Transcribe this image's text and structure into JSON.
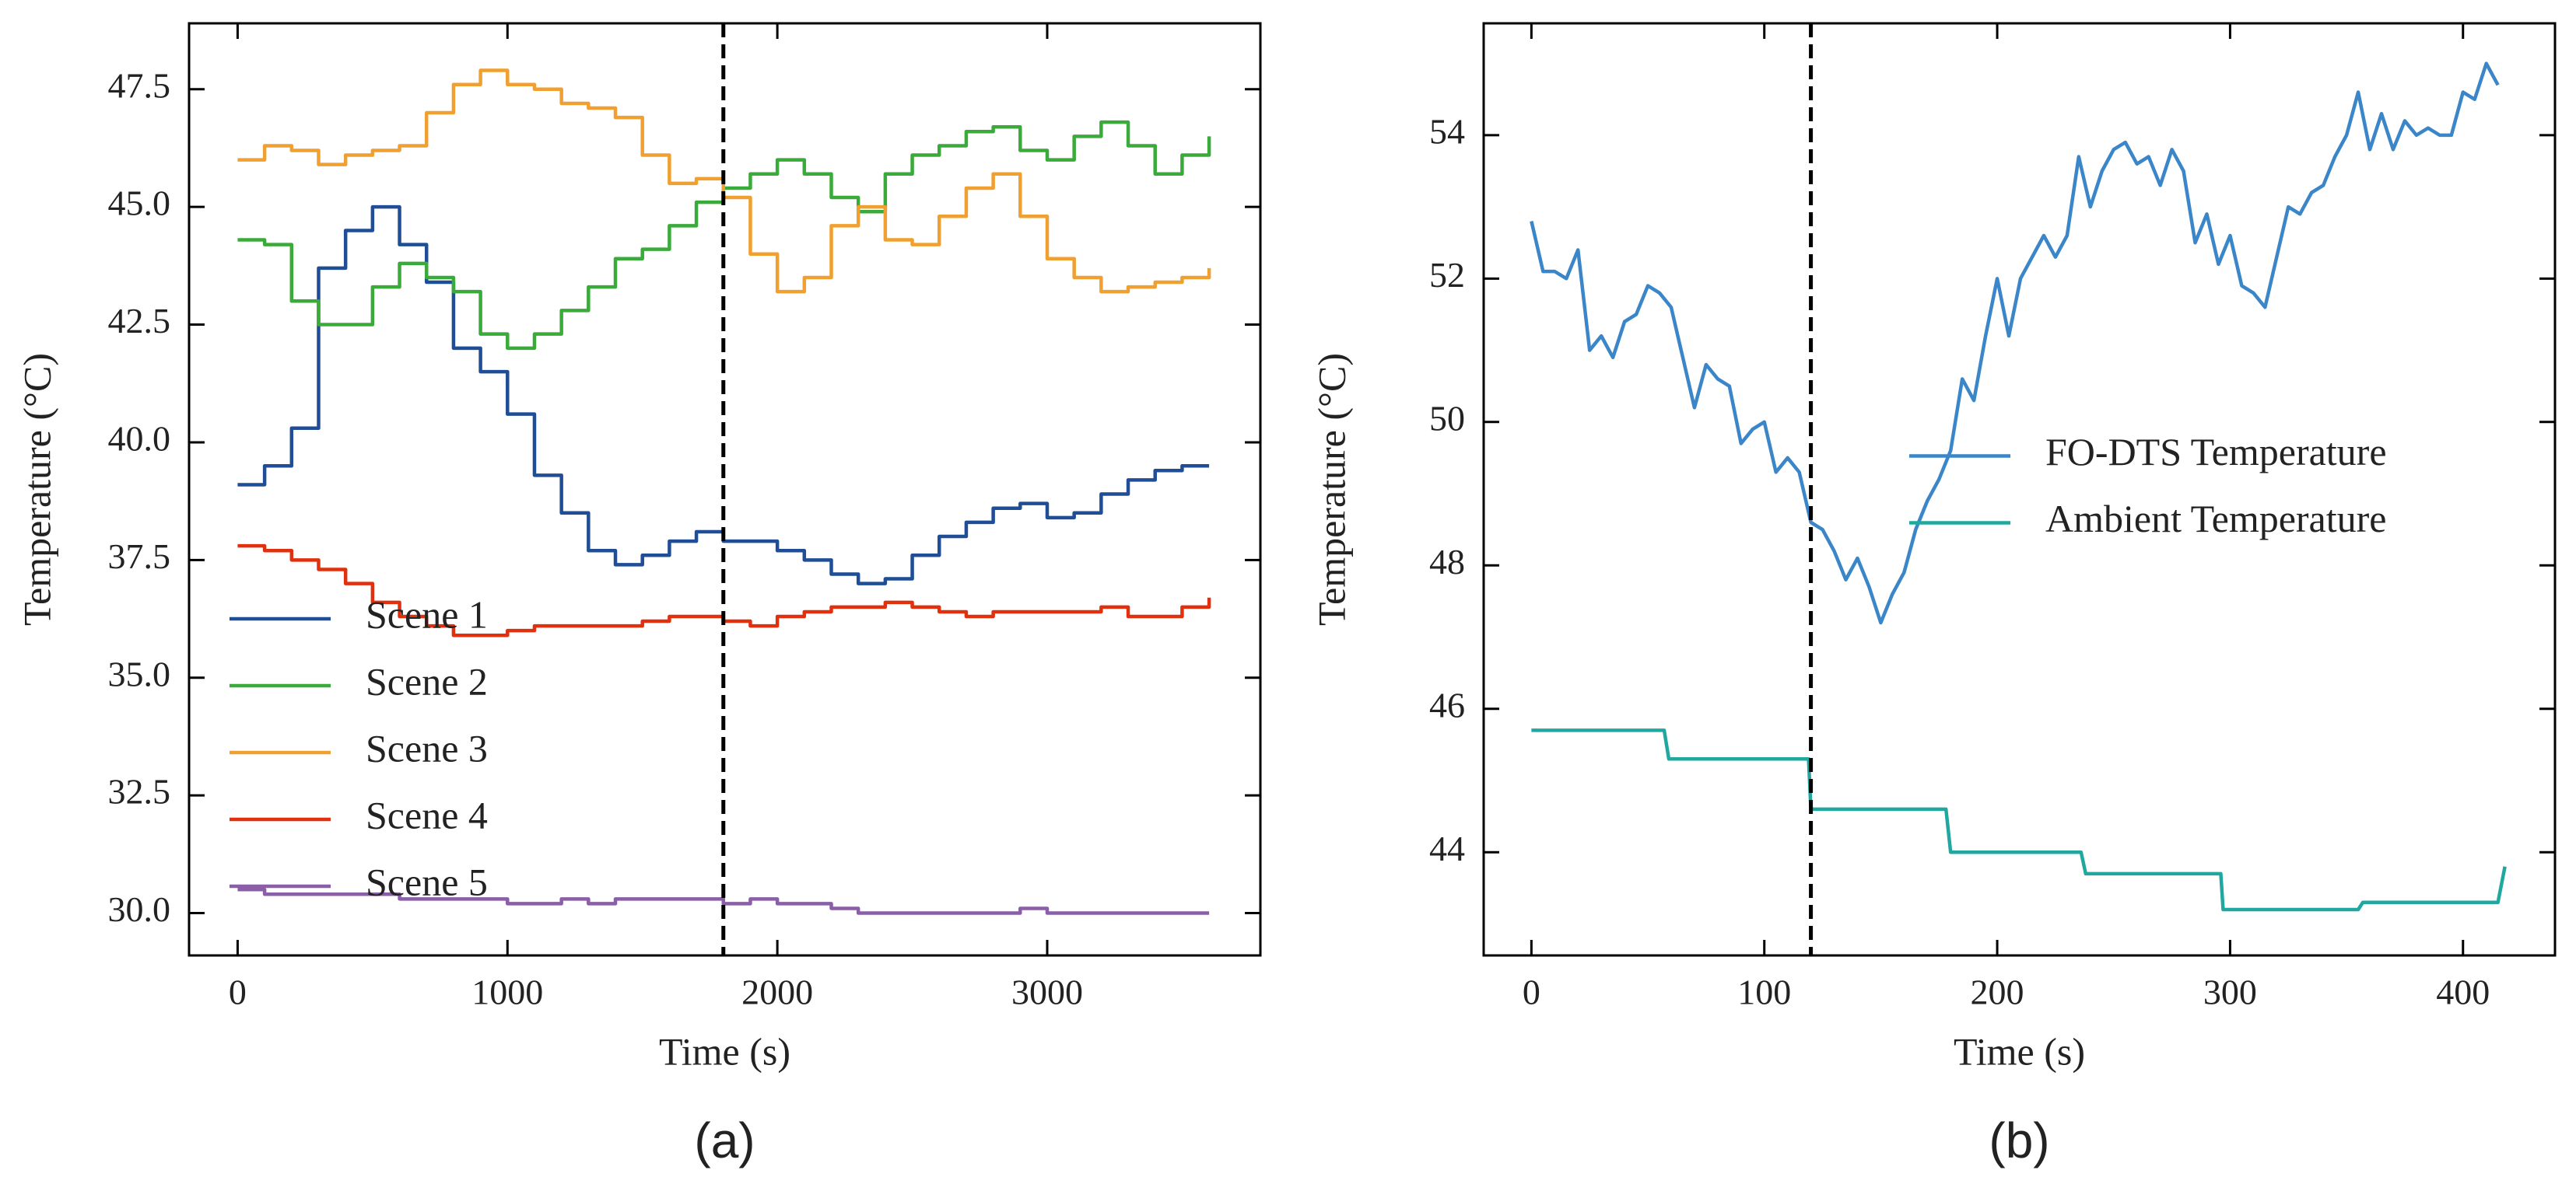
{
  "chart_data": [
    {
      "type": "line",
      "drawstyle": "steps-post",
      "panel_label": "(a)",
      "xlabel": "Time (s)",
      "ylabel": "Temperature (°C)",
      "xlim": [
        -180,
        3790
      ],
      "ylim": [
        29.1,
        48.9
      ],
      "xticks": [
        0,
        1000,
        2000,
        3000
      ],
      "yticks": [
        {
          "value": 30,
          "label": "30.0"
        },
        32.5,
        {
          "value": 35,
          "label": "35.0"
        },
        37.5,
        {
          "value": 40,
          "label": "40.0"
        },
        42.5,
        {
          "value": 45,
          "label": "45.0"
        },
        47.5
      ],
      "vlines": [
        1800
      ],
      "legend": "lower left",
      "x": [
        0,
        100,
        200,
        300,
        400,
        500,
        600,
        700,
        800,
        900,
        1000,
        1100,
        1200,
        1300,
        1400,
        1500,
        1600,
        1700,
        1800,
        1900,
        2000,
        2100,
        2200,
        2300,
        2400,
        2500,
        2600,
        2700,
        2800,
        2900,
        3000,
        3100,
        3200,
        3300,
        3400,
        3500,
        3600
      ],
      "series": [
        {
          "name": "Scene 1",
          "color": "#1f4e96",
          "values": [
            39.1,
            39.5,
            40.3,
            43.7,
            44.5,
            45.0,
            44.2,
            43.4,
            42.0,
            41.5,
            40.6,
            39.3,
            38.5,
            37.7,
            37.4,
            37.6,
            37.9,
            38.1,
            37.9,
            37.9,
            37.7,
            37.5,
            37.2,
            37.0,
            37.1,
            37.6,
            38.0,
            38.3,
            38.6,
            38.7,
            38.4,
            38.5,
            38.9,
            39.2,
            39.4,
            39.5,
            39.5
          ]
        },
        {
          "name": "Scene 2",
          "color": "#3aab3a",
          "values": [
            44.3,
            44.2,
            43.0,
            42.5,
            42.5,
            43.3,
            43.8,
            43.5,
            43.2,
            42.3,
            42.0,
            42.3,
            42.8,
            43.3,
            43.9,
            44.1,
            44.6,
            45.1,
            45.4,
            45.7,
            46.0,
            45.7,
            45.2,
            44.9,
            45.7,
            46.1,
            46.3,
            46.6,
            46.7,
            46.2,
            46.0,
            46.5,
            46.8,
            46.3,
            45.7,
            46.1,
            46.5
          ]
        },
        {
          "name": "Scene 3",
          "color": "#f0a030",
          "values": [
            46.0,
            46.3,
            46.2,
            45.9,
            46.1,
            46.2,
            46.3,
            47.0,
            47.6,
            47.9,
            47.6,
            47.5,
            47.2,
            47.1,
            46.9,
            46.1,
            45.5,
            45.6,
            45.2,
            44.0,
            43.2,
            43.5,
            44.6,
            45.0,
            44.3,
            44.2,
            44.8,
            45.4,
            45.7,
            44.8,
            43.9,
            43.5,
            43.2,
            43.3,
            43.4,
            43.5,
            43.7
          ]
        },
        {
          "name": "Scene 4",
          "color": "#e0300e",
          "values": [
            37.8,
            37.7,
            37.5,
            37.3,
            37.0,
            36.6,
            36.3,
            36.1,
            35.9,
            35.9,
            36.0,
            36.1,
            36.1,
            36.1,
            36.1,
            36.2,
            36.3,
            36.3,
            36.2,
            36.1,
            36.3,
            36.4,
            36.5,
            36.5,
            36.6,
            36.5,
            36.4,
            36.3,
            36.4,
            36.4,
            36.4,
            36.4,
            36.5,
            36.3,
            36.3,
            36.5,
            36.7
          ]
        },
        {
          "name": "Scene 5",
          "color": "#8b5ea8",
          "values": [
            30.5,
            30.4,
            30.4,
            30.4,
            30.4,
            30.4,
            30.3,
            30.3,
            30.3,
            30.3,
            30.2,
            30.2,
            30.3,
            30.2,
            30.3,
            30.3,
            30.3,
            30.3,
            30.2,
            30.3,
            30.2,
            30.2,
            30.1,
            30.0,
            30.0,
            30.0,
            30.0,
            30.0,
            30.0,
            30.1,
            30.0,
            30.0,
            30.0,
            30.0,
            30.0,
            30.0,
            30.0
          ]
        }
      ]
    },
    {
      "type": "line",
      "panel_label": "(b)",
      "xlabel": "Time (s)",
      "ylabel": "Temperature (°C)",
      "xlim": [
        -20.5,
        439.5
      ],
      "ylim": [
        42.56,
        55.56
      ],
      "xticks": [
        0,
        100,
        200,
        300,
        400
      ],
      "yticks": [
        44,
        46,
        48,
        50,
        52,
        54
      ],
      "vlines": [
        120
      ],
      "legend": "center right",
      "series": [
        {
          "name": "FO-DTS Temperature",
          "color": "#3a86c8",
          "x": [
            0,
            5,
            10,
            15,
            20,
            25,
            30,
            35,
            40,
            45,
            50,
            55,
            60,
            65,
            70,
            75,
            80,
            85,
            90,
            95,
            100,
            105,
            110,
            115,
            120,
            125,
            130,
            135,
            140,
            145,
            150,
            155,
            160,
            165,
            170,
            175,
            180,
            185,
            190,
            195,
            200,
            205,
            210,
            215,
            220,
            225,
            230,
            235,
            240,
            245,
            250,
            255,
            260,
            265,
            270,
            275,
            280,
            285,
            290,
            295,
            300,
            305,
            310,
            315,
            320,
            325,
            330,
            335,
            340,
            345,
            350,
            355,
            360,
            365,
            370,
            375,
            380,
            385,
            390,
            395,
            400,
            405,
            410,
            415
          ],
          "values": [
            52.8,
            52.1,
            52.1,
            52.0,
            52.4,
            51.0,
            51.2,
            50.9,
            51.4,
            51.5,
            51.9,
            51.8,
            51.6,
            50.9,
            50.2,
            50.8,
            50.6,
            50.5,
            49.7,
            49.9,
            50.0,
            49.3,
            49.5,
            49.3,
            48.6,
            48.5,
            48.2,
            47.8,
            48.1,
            47.7,
            47.2,
            47.6,
            47.9,
            48.5,
            48.9,
            49.2,
            49.6,
            50.6,
            50.3,
            51.2,
            52.0,
            51.2,
            52.0,
            52.3,
            52.6,
            52.3,
            52.6,
            53.7,
            53.0,
            53.5,
            53.8,
            53.9,
            53.6,
            53.7,
            53.3,
            53.8,
            53.5,
            52.5,
            52.9,
            52.2,
            52.6,
            51.9,
            51.8,
            51.6,
            52.3,
            53.0,
            52.9,
            53.2,
            53.3,
            53.7,
            54.0,
            54.6,
            53.8,
            54.3,
            53.8,
            54.2,
            54.0,
            54.1,
            54.0,
            54.0,
            54.6,
            54.5,
            55.0,
            54.7
          ]
        },
        {
          "name": "Ambient Temperature",
          "color": "#20a8a0",
          "x": [
            0,
            57,
            59,
            119,
            120,
            178,
            180,
            236,
            238,
            296,
            297,
            355,
            357,
            415,
            418
          ],
          "values": [
            45.7,
            45.7,
            45.3,
            45.3,
            44.6,
            44.6,
            44.0,
            44.0,
            43.7,
            43.7,
            43.2,
            43.2,
            43.3,
            43.3,
            43.8
          ]
        }
      ]
    }
  ]
}
